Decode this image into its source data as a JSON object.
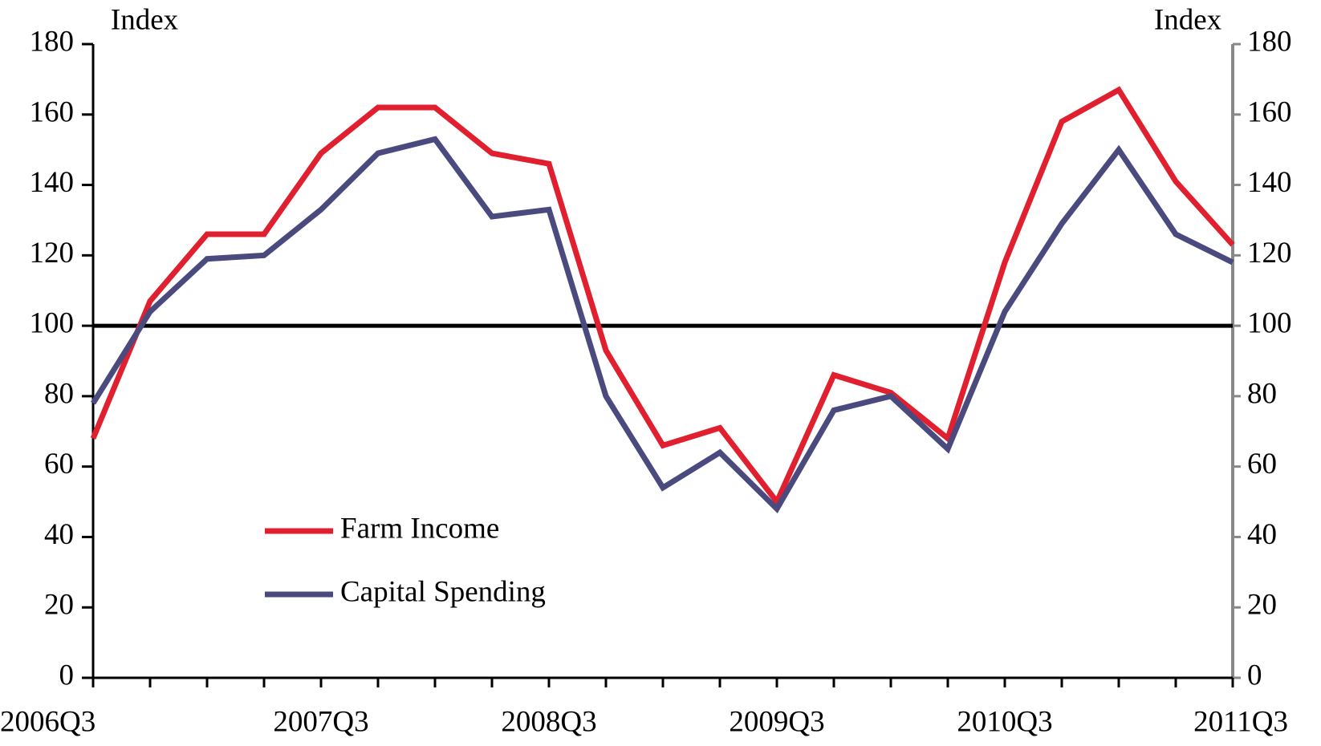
{
  "chart_data": {
    "type": "line",
    "y_label": "Index",
    "y2_label": "Index",
    "categories": [
      "2006Q3",
      null,
      null,
      null,
      "2007Q3",
      null,
      null,
      null,
      "2008Q3",
      null,
      null,
      null,
      "2009Q3",
      null,
      null,
      null,
      "2010Q3",
      null,
      null,
      null,
      "2011Q3"
    ],
    "series": [
      {
        "name": "Farm Income",
        "color": "#e0202e",
        "values": [
          68,
          107,
          126,
          126,
          149,
          162,
          162,
          149,
          146,
          93,
          66,
          71,
          50,
          86,
          81,
          68,
          118,
          158,
          167,
          141,
          123
        ]
      },
      {
        "name": "Capital Spending",
        "color": "#4b4a7e",
        "values": [
          78,
          104,
          119,
          120,
          133,
          149,
          153,
          131,
          133,
          80,
          54,
          64,
          48,
          76,
          80,
          65,
          104,
          129,
          150,
          126,
          118
        ]
      }
    ],
    "ylim": [
      0,
      180
    ],
    "yticks": [
      0,
      20,
      40,
      60,
      80,
      100,
      120,
      140,
      160,
      180
    ],
    "y2lim": [
      0,
      180
    ],
    "y2ticks": [
      0,
      20,
      40,
      60,
      80,
      100,
      120,
      140,
      160,
      180
    ],
    "reference_line": 100,
    "grid": false,
    "legend": "lower left"
  }
}
